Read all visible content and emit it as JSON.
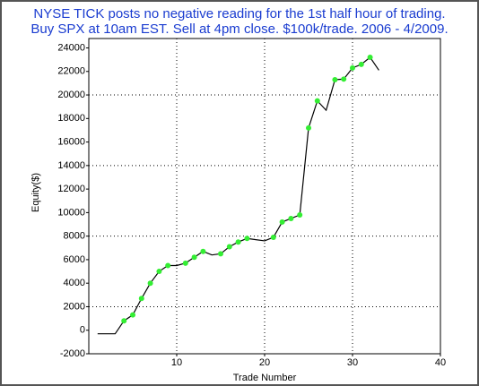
{
  "chart_data": {
    "type": "line",
    "title": "NYSE TICK posts no negative reading for the 1st half hour of trading.",
    "subtitle": "Buy SPX at 10am EST. Sell at 4pm close. $100k/trade. 2006 - 4/2009.",
    "x_label": "Trade Number",
    "y_label": "Equity($)",
    "x": [
      1,
      2,
      3,
      4,
      5,
      6,
      7,
      8,
      9,
      10,
      11,
      12,
      13,
      14,
      15,
      16,
      17,
      18,
      19,
      20,
      21,
      22,
      23,
      24,
      25,
      26,
      27,
      28,
      29,
      30,
      31,
      32,
      33
    ],
    "series": [
      {
        "name": "Equity",
        "color": "#000000",
        "marker_color": "#33ee33",
        "values": [
          -300,
          -300,
          -300,
          800,
          1300,
          2700,
          4000,
          5000,
          5500,
          5500,
          5700,
          6200,
          6700,
          6400,
          6500,
          7100,
          7500,
          7800,
          7700,
          7600,
          7900,
          9200,
          9500,
          9800,
          17200,
          19500,
          18700,
          21300,
          21350,
          22300,
          22600,
          23200,
          22100
        ]
      }
    ],
    "xlim": [
      0,
      40
    ],
    "xticks": [
      10,
      20,
      30,
      40
    ],
    "ylim": [
      -2000,
      24800
    ],
    "yticks": [
      -2000,
      0,
      2000,
      4000,
      6000,
      8000,
      10000,
      12000,
      14000,
      16000,
      18000,
      20000,
      22000,
      24000
    ],
    "grid": true
  }
}
